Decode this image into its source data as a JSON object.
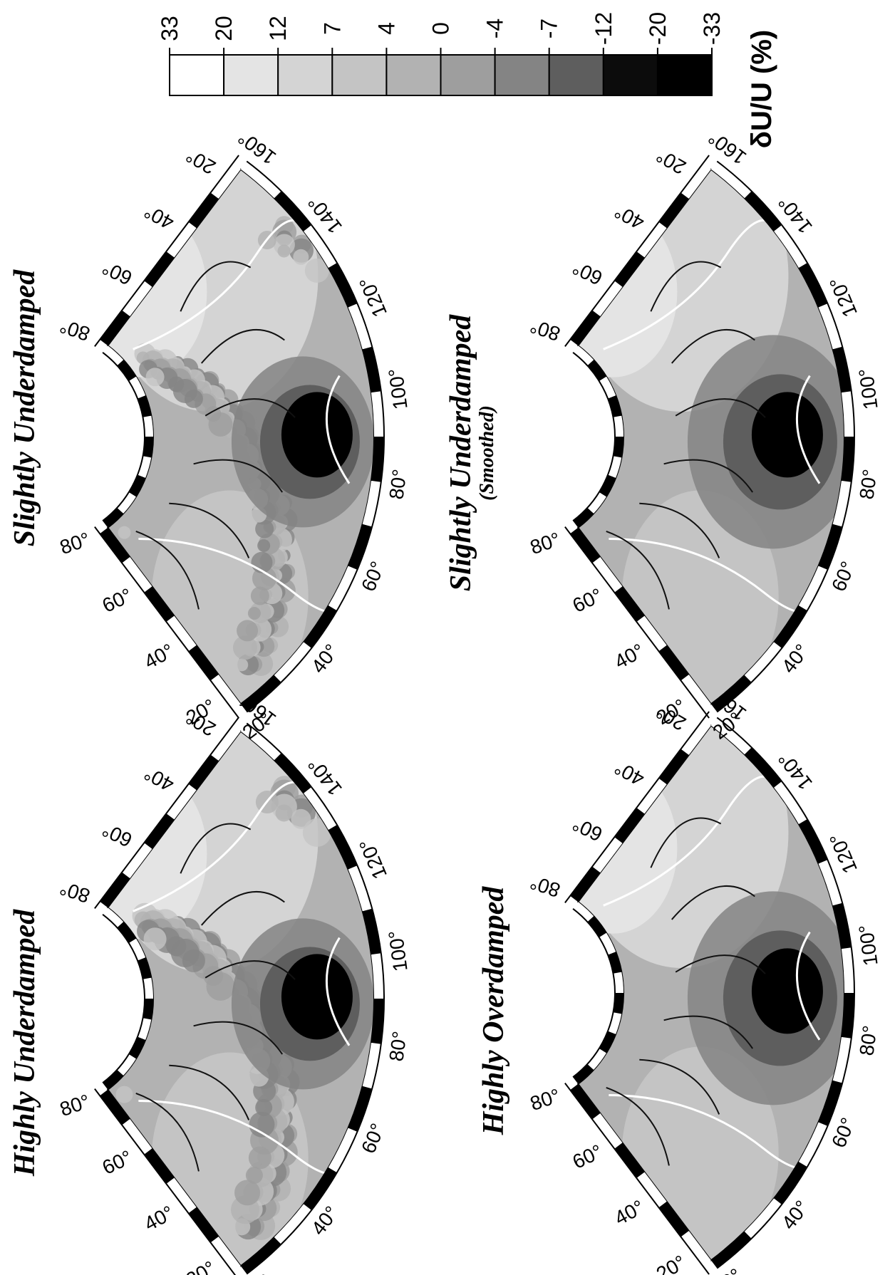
{
  "panels": [
    {
      "title": "Highly Underdamped"
    },
    {
      "title": "Slightly Underdamped"
    },
    {
      "title": "Highly Overdamped"
    },
    {
      "title": "Slightly Underdamped",
      "subtitle": "(Smoothed)"
    }
  ],
  "longitude_labels": [
    "20°",
    "40°",
    "60°",
    "80°",
    "100°",
    "120°",
    "140°",
    "160°"
  ],
  "latitude_labels": [
    "20°",
    "40°",
    "60°",
    "80°"
  ],
  "colorbar": {
    "label": "δU/U (%)",
    "ticks": [
      33,
      20,
      12,
      7,
      4,
      0,
      -4,
      -7,
      -12,
      -20,
      -33
    ],
    "colors": [
      "#ffffff",
      "#e4e4e4",
      "#d4d4d4",
      "#c4c4c4",
      "#b2b2b2",
      "#9e9e9e",
      "#848484",
      "#5e5e5e",
      "#0c0c0c",
      "#000000"
    ]
  }
}
